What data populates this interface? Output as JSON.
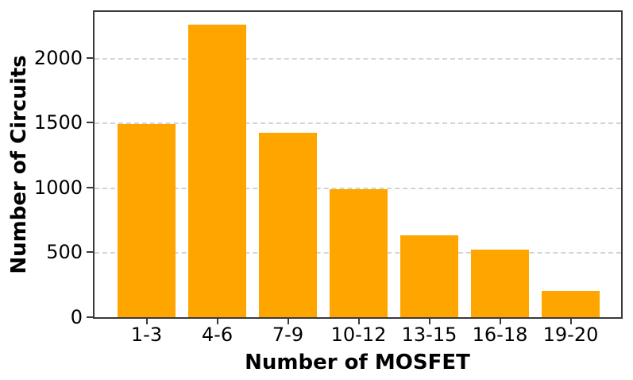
{
  "chart_data": {
    "type": "bar",
    "title": "",
    "xlabel": "Number of MOSFET",
    "ylabel": "Number of Circuits",
    "categories": [
      "1-3",
      "4-6",
      "7-9",
      "10-12",
      "13-15",
      "16-18",
      "19-20"
    ],
    "values": [
      1490,
      2260,
      1420,
      990,
      630,
      520,
      205
    ],
    "yticks": [
      0,
      500,
      1000,
      1500,
      2000
    ],
    "ylim": [
      0,
      2355
    ],
    "bar_color": "#FFA500",
    "grid": {
      "axis": "y",
      "style": "dashed",
      "color": "#D4D4D4",
      "below_bars": true
    },
    "spine_color": "#3A3A3A",
    "tick_label_color": "#000000",
    "legend": "none"
  }
}
